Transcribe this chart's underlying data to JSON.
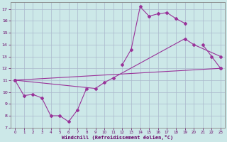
{
  "xlabel": "Windchill (Refroidissement éolien,°C)",
  "background_color": "#cce8e8",
  "grid_color": "#aab8cc",
  "line_color": "#993399",
  "xlim": [
    -0.5,
    23.5
  ],
  "ylim": [
    7,
    17.6
  ],
  "xticks": [
    0,
    1,
    2,
    3,
    4,
    5,
    6,
    7,
    8,
    9,
    10,
    11,
    12,
    13,
    14,
    15,
    16,
    17,
    18,
    19,
    20,
    21,
    22,
    23
  ],
  "yticks": [
    7,
    8,
    9,
    10,
    11,
    12,
    13,
    14,
    15,
    16,
    17
  ],
  "series1": {
    "x": [
      0,
      1,
      2,
      3,
      4,
      5,
      6,
      7,
      8,
      12,
      13,
      14,
      15,
      16,
      17,
      18,
      19,
      21,
      22,
      23
    ],
    "y": [
      11.0,
      9.7,
      9.8,
      9.5,
      8.0,
      8.0,
      7.5,
      8.5,
      10.3,
      12.3,
      13.6,
      17.2,
      16.4,
      16.6,
      16.7,
      16.2,
      15.8,
      14.0,
      13.0,
      12.0
    ]
  },
  "series2": {
    "x": [
      0,
      23
    ],
    "y": [
      11.0,
      12.0
    ]
  },
  "series3": {
    "x": [
      0,
      9,
      10,
      11,
      19,
      20,
      23
    ],
    "y": [
      11.0,
      10.3,
      10.8,
      11.2,
      14.5,
      14.0,
      13.0
    ]
  },
  "figsize": [
    3.2,
    2.0
  ],
  "dpi": 100
}
